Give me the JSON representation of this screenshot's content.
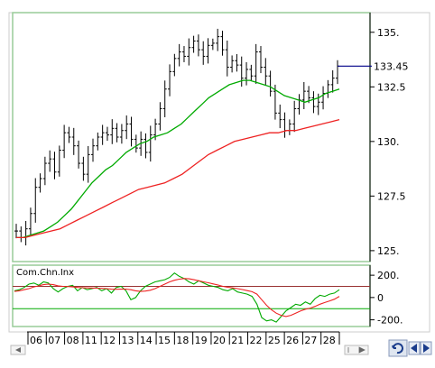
{
  "chart_data": [
    {
      "type": "line",
      "title": "",
      "xlabel": "",
      "ylabel": "",
      "x_tick_labels": [
        "06",
        "07",
        "08",
        "11",
        "12",
        "13",
        "14",
        "15",
        "18",
        "19",
        "20",
        "21",
        "22",
        "25",
        "26",
        "27",
        "28"
      ],
      "y_ticks": [
        125,
        127.5,
        130,
        132.5,
        135
      ],
      "y_tick_labels": [
        "125.",
        "127.5",
        "130.",
        "132.5",
        "135."
      ],
      "ylim": [
        124.5,
        135.9
      ],
      "last_value_label": "133.45",
      "last_value": 133.45,
      "grid": false,
      "series": [
        {
          "style": "ohlc-bars",
          "color": "#000000",
          "values": [
            125.9,
            125.6,
            126.0,
            126.7,
            127.9,
            128.3,
            129.0,
            129.2,
            128.6,
            129.6,
            130.4,
            130.2,
            129.8,
            129.0,
            128.5,
            129.4,
            129.8,
            130.2,
            130.4,
            130.3,
            130.6,
            130.2,
            130.5,
            130.8,
            130.1,
            129.7,
            130.1,
            129.5,
            130.3,
            130.8,
            131.5,
            132.4,
            133.2,
            133.8,
            134.1,
            133.9,
            134.3,
            134.6,
            134.2,
            133.9,
            134.4,
            134.5,
            134.8,
            134.2,
            133.4,
            133.7,
            133.5,
            132.9,
            133.3,
            133.0,
            134.1,
            133.4,
            133.0,
            132.3,
            131.3,
            131.0,
            130.5,
            130.8,
            131.5,
            131.9,
            132.3,
            132.0,
            131.6,
            131.8,
            132.2,
            132.6,
            132.9,
            133.45
          ]
        },
        {
          "style": "line",
          "color": "#00aa00",
          "values": [
            125.6,
            125.6,
            125.7,
            125.8,
            125.9,
            126.1,
            126.3,
            126.6,
            126.9,
            127.3,
            127.7,
            128.1,
            128.4,
            128.7,
            128.9,
            129.2,
            129.5,
            129.7,
            129.9,
            130.0,
            130.2,
            130.3,
            130.4,
            130.6,
            130.8,
            131.1,
            131.4,
            131.7,
            132.0,
            132.2,
            132.4,
            132.6,
            132.7,
            132.8,
            132.8,
            132.7,
            132.6,
            132.5,
            132.3,
            132.1,
            132.0,
            131.9,
            131.8,
            131.9,
            132.0,
            132.2,
            132.3,
            132.4
          ]
        },
        {
          "style": "line",
          "color": "#ee2222",
          "values": [
            125.6,
            125.6,
            125.7,
            125.8,
            125.9,
            126.0,
            126.2,
            126.4,
            126.6,
            126.8,
            127.0,
            127.2,
            127.4,
            127.6,
            127.8,
            127.9,
            128.0,
            128.1,
            128.3,
            128.5,
            128.8,
            129.1,
            129.4,
            129.6,
            129.8,
            130.0,
            130.1,
            130.2,
            130.3,
            130.4,
            130.4,
            130.5,
            130.5,
            130.6,
            130.7,
            130.8,
            130.9,
            131.0
          ]
        }
      ]
    },
    {
      "type": "line",
      "title": "Com.Chn.Inx",
      "y_ticks": [
        200,
        0,
        -200
      ],
      "y_tick_labels": [
        "200.",
        "0",
        "-200."
      ],
      "ylim": [
        -260,
        290
      ],
      "reference_lines": [
        {
          "value": 100,
          "color": "#993333"
        },
        {
          "value": -100,
          "color": "#00aa00"
        }
      ],
      "series": [
        {
          "color": "#00aa00",
          "values": [
            60,
            70,
            90,
            120,
            130,
            110,
            140,
            130,
            80,
            50,
            80,
            100,
            110,
            60,
            90,
            70,
            80,
            90,
            60,
            80,
            40,
            90,
            100,
            60,
            -20,
            0,
            60,
            100,
            120,
            140,
            150,
            160,
            180,
            220,
            190,
            170,
            140,
            120,
            150,
            130,
            110,
            100,
            90,
            70,
            60,
            80,
            50,
            40,
            30,
            10,
            -60,
            -180,
            -210,
            -200,
            -220,
            -170,
            -120,
            -90,
            -60,
            -70,
            -40,
            -60,
            -10,
            20,
            10,
            30,
            40,
            70
          ]
        },
        {
          "color": "#ee2222",
          "values": [
            55,
            60,
            70,
            80,
            95,
            105,
            115,
            120,
            115,
            105,
            100,
            98,
            95,
            90,
            88,
            86,
            85,
            84,
            82,
            80,
            75,
            74,
            75,
            76,
            70,
            60,
            55,
            58,
            65,
            80,
            100,
            120,
            140,
            155,
            165,
            170,
            168,
            160,
            150,
            140,
            132,
            122,
            112,
            100,
            92,
            86,
            80,
            72,
            62,
            52,
            30,
            -20,
            -70,
            -110,
            -140,
            -160,
            -170,
            -160,
            -140,
            -120,
            -105,
            -95,
            -80,
            -60,
            -45,
            -30,
            -15,
            10
          ]
        }
      ]
    }
  ]
}
